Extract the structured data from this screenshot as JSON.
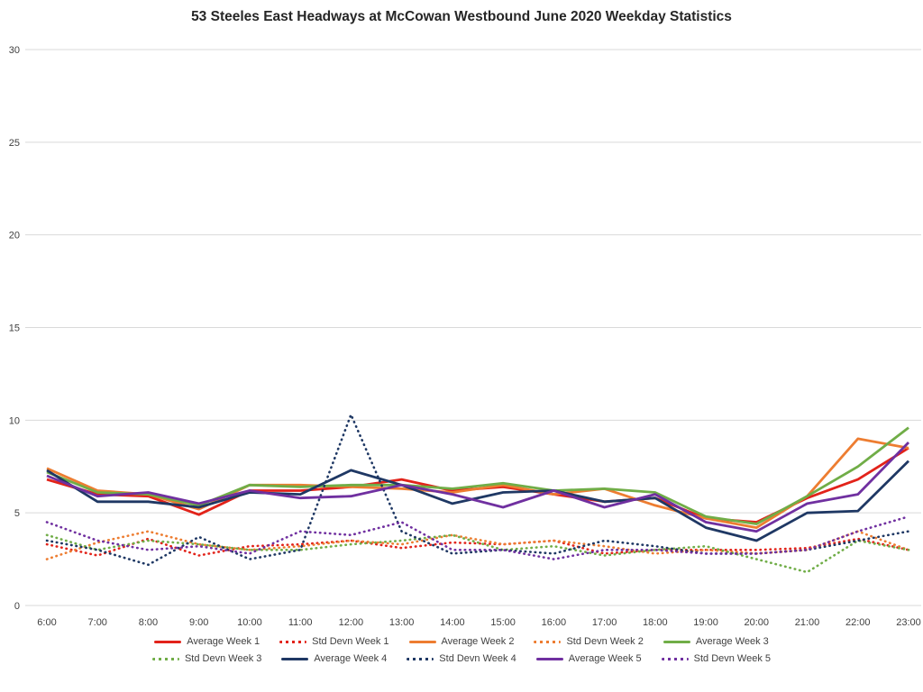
{
  "title": "53 Steeles East Headways at McCowan Westbound June 2020 Weekday Statistics",
  "chart_data": {
    "type": "line",
    "title": "53 Steeles East Headways at McCowan Westbound June 2020 Weekday Statistics",
    "xlabel": "",
    "ylabel": "",
    "ylim": [
      0,
      30
    ],
    "yticks": [
      0,
      5,
      10,
      15,
      20,
      25,
      30
    ],
    "grid": true,
    "legend_position": "bottom",
    "x": [
      "6:00",
      "7:00",
      "8:00",
      "9:00",
      "10:00",
      "11:00",
      "12:00",
      "13:00",
      "14:00",
      "15:00",
      "16:00",
      "17:00",
      "18:00",
      "19:00",
      "20:00",
      "21:00",
      "22:00",
      "23:00"
    ],
    "series": [
      {
        "name": "Average Week 1",
        "color": "#e2231a",
        "style": "solid",
        "values": [
          6.8,
          6.0,
          5.9,
          4.9,
          6.2,
          6.2,
          6.4,
          6.8,
          6.2,
          6.4,
          6.0,
          5.6,
          5.8,
          4.7,
          4.5,
          5.8,
          6.8,
          8.5
        ]
      },
      {
        "name": "Std Devn Week 1",
        "color": "#e2231a",
        "style": "dotted",
        "values": [
          3.3,
          2.7,
          3.6,
          2.7,
          3.2,
          3.3,
          3.5,
          3.1,
          3.4,
          3.3,
          3.5,
          2.8,
          3.0,
          3.0,
          3.0,
          3.1,
          3.6,
          3.0
        ]
      },
      {
        "name": "Average Week 2",
        "color": "#ed7d31",
        "style": "solid",
        "values": [
          7.4,
          6.2,
          6.0,
          5.2,
          6.5,
          6.5,
          6.4,
          6.3,
          6.1,
          6.5,
          6.0,
          6.3,
          5.4,
          4.7,
          4.2,
          5.9,
          9.0,
          8.5
        ]
      },
      {
        "name": "Std Devn Week 2",
        "color": "#ed7d31",
        "style": "dotted",
        "values": [
          2.5,
          3.4,
          4.0,
          3.3,
          3.0,
          3.2,
          3.5,
          3.3,
          3.8,
          3.3,
          3.5,
          3.2,
          2.8,
          3.0,
          2.8,
          3.0,
          4.0,
          3.0
        ]
      },
      {
        "name": "Average Week 3",
        "color": "#70ad47",
        "style": "solid",
        "values": [
          7.2,
          6.1,
          6.0,
          5.4,
          6.5,
          6.4,
          6.5,
          6.5,
          6.3,
          6.6,
          6.2,
          6.3,
          6.1,
          4.8,
          4.4,
          5.9,
          7.5,
          9.6
        ]
      },
      {
        "name": "Std Devn Week 3",
        "color": "#70ad47",
        "style": "dotted",
        "values": [
          3.8,
          3.0,
          3.5,
          3.3,
          3.0,
          3.0,
          3.3,
          3.5,
          3.8,
          3.0,
          3.2,
          2.7,
          3.0,
          3.2,
          2.5,
          1.8,
          3.5,
          3.0
        ]
      },
      {
        "name": "Average Week 4",
        "color": "#1f3864",
        "style": "solid",
        "values": [
          7.3,
          5.6,
          5.6,
          5.3,
          6.1,
          6.0,
          7.3,
          6.5,
          5.5,
          6.1,
          6.2,
          5.6,
          5.8,
          4.2,
          3.5,
          5.0,
          5.1,
          7.8
        ]
      },
      {
        "name": "Std Devn Week 4",
        "color": "#1f3864",
        "style": "dotted",
        "values": [
          3.5,
          3.0,
          2.2,
          3.7,
          2.5,
          3.0,
          10.3,
          4.0,
          2.8,
          3.0,
          2.8,
          3.5,
          3.2,
          2.8,
          2.8,
          3.0,
          3.5,
          4.0
        ]
      },
      {
        "name": "Average Week 5",
        "color": "#7030a0",
        "style": "solid",
        "values": [
          7.0,
          5.9,
          6.1,
          5.5,
          6.2,
          5.8,
          5.9,
          6.5,
          6.0,
          5.3,
          6.2,
          5.3,
          6.0,
          4.5,
          4.0,
          5.5,
          6.0,
          8.8
        ]
      },
      {
        "name": "Std Devn Week 5",
        "color": "#7030a0",
        "style": "dotted",
        "values": [
          4.5,
          3.5,
          3.0,
          3.2,
          2.8,
          4.0,
          3.8,
          4.5,
          3.0,
          3.0,
          2.5,
          3.0,
          3.0,
          2.8,
          2.8,
          3.0,
          4.0,
          4.8
        ]
      }
    ]
  }
}
